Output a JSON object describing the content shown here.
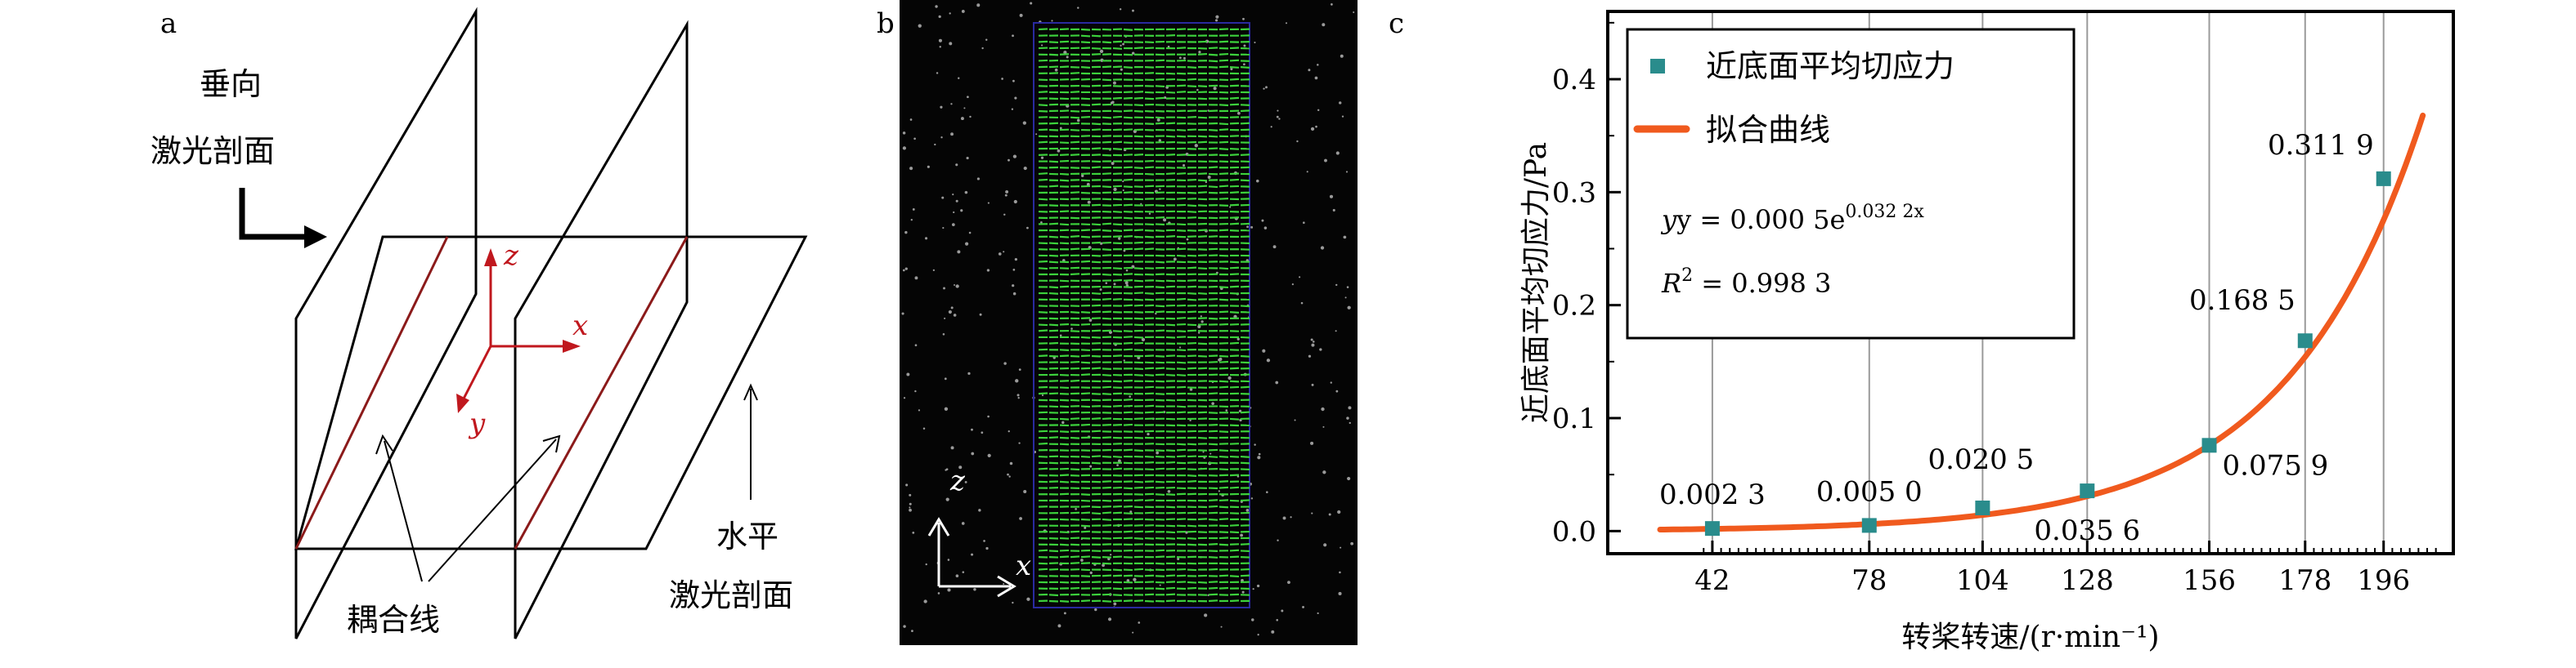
{
  "panel_a": {
    "letter": "a",
    "vertical_label_1": "垂向",
    "vertical_label_2": "激光剖面",
    "horizontal_label_1": "水平",
    "horizontal_label_2": "激光剖面",
    "coupling_label": "耦合线",
    "axis_z": "z",
    "axis_x": "x",
    "axis_y": "y",
    "colors": {
      "lines": "#000000",
      "coupling": "#8b1a1a",
      "axes": "#c0181e"
    }
  },
  "panel_b": {
    "letter": "b",
    "axis_z": "z",
    "axis_x": "x",
    "colors": {
      "background": "#050505",
      "vectors": "#3cd23c",
      "roi": "#2a2aa0"
    }
  },
  "panel_c": {
    "letter": "c",
    "equation_prefix": "y = 0.000 5e",
    "equation_exponent": "0.032 2x",
    "r2_prefix": "R",
    "r2_sup": "2",
    "r2_value": " = 0.998 3",
    "colors": {
      "points": "#2a8c8c",
      "curve": "#f05a1e"
    }
  },
  "chart_data": {
    "type": "scatter",
    "xlabel": "转桨转速/(r·min⁻¹)",
    "ylabel": "近底面平均切应力/Pa",
    "x_ticks": [
      "42",
      "78",
      "104",
      "128",
      "156",
      "178",
      "196"
    ],
    "y_ticks": [
      "0.0",
      "0.1",
      "0.2",
      "0.3",
      "0.4"
    ],
    "xlim": [
      18,
      212
    ],
    "ylim": [
      -0.02,
      0.46
    ],
    "grid": "vertical lines at x ticks",
    "legend": "top-left",
    "series": [
      {
        "name": "近底面平均切应力",
        "style": "square markers",
        "x": [
          42,
          78,
          104,
          128,
          156,
          178,
          196
        ],
        "y": [
          0.0023,
          0.005,
          0.0205,
          0.0356,
          0.0759,
          0.1685,
          0.3119
        ],
        "labels": [
          "0.002 3",
          "0.005 0",
          "0.020 5",
          "0.035 6",
          "0.075 9",
          "0.168 5",
          "0.311 9"
        ]
      },
      {
        "name": "拟合曲线",
        "style": "line",
        "fit": {
          "a": 0.0005,
          "b": 0.0322,
          "x_start": 30,
          "x_end": 205
        }
      }
    ]
  }
}
